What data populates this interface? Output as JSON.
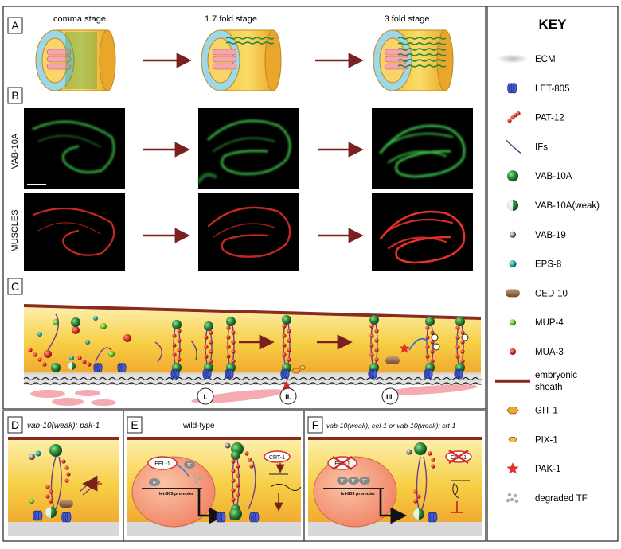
{
  "panels": {
    "a": {
      "label": "A",
      "stages": [
        "comma stage",
        "1.7 fold stage",
        "3 fold stage"
      ]
    },
    "b": {
      "label": "B",
      "rows": [
        "VAB-10A",
        "MUSCLES"
      ]
    },
    "c": {
      "label": "C",
      "steps": [
        "I.",
        "II.",
        "III."
      ]
    },
    "d": {
      "label": "D",
      "title": "vab-10(weak); pak-1"
    },
    "e": {
      "label": "E",
      "title": "wild-type",
      "eel": "EEL-1",
      "tf": "TF",
      "promoter": "let-805 promoter",
      "crt": "CRT-1"
    },
    "f": {
      "label": "F",
      "title": "vab-10(weak); eel-1 or vab-10(weak); crt-1",
      "eel": "EEL-1",
      "tf": "TF",
      "promoter": "let-805 promoter",
      "crt": "CRT-1"
    }
  },
  "key": {
    "title": "KEY",
    "items": [
      {
        "label": "ECM",
        "icon": "ecm-swatch-icon"
      },
      {
        "label": "LET-805",
        "icon": "let805-coil-icon"
      },
      {
        "label": "PAT-12",
        "icon": "pat12-chain-icon"
      },
      {
        "label": "IFs",
        "icon": "if-line-icon"
      },
      {
        "label": "VAB-10A",
        "icon": "vab10a-sphere-icon"
      },
      {
        "label": "VAB-10A(weak)",
        "icon": "vab10a-weak-sphere-icon"
      },
      {
        "label": "VAB-19",
        "icon": "vab19-sphere-icon"
      },
      {
        "label": "EPS-8",
        "icon": "eps8-sphere-icon"
      },
      {
        "label": "CED-10",
        "icon": "ced10-capsule-icon"
      },
      {
        "label": "MUP-4",
        "icon": "mup4-sphere-icon"
      },
      {
        "label": "MUA-3",
        "icon": "mua3-sphere-icon"
      },
      {
        "label": "embryonic sheath",
        "icon": "sheath-bar-icon"
      },
      {
        "label": "GIT-1",
        "icon": "git1-hexagon-icon"
      },
      {
        "label": "PIX-1",
        "icon": "pix1-hexagon-icon"
      },
      {
        "label": "PAK-1",
        "icon": "pak1-star-icon"
      },
      {
        "label": "degraded TF",
        "icon": "degraded-tf-dots-icon"
      }
    ]
  },
  "colors": {
    "sheath": "#8b2a1e",
    "arrow": "#7a2020",
    "cell_yellow": "#f6d34a",
    "green": "#2e8b3a",
    "red": "#d42a20",
    "blue": "#3b4ec8",
    "purple": "#6a3d8f"
  }
}
